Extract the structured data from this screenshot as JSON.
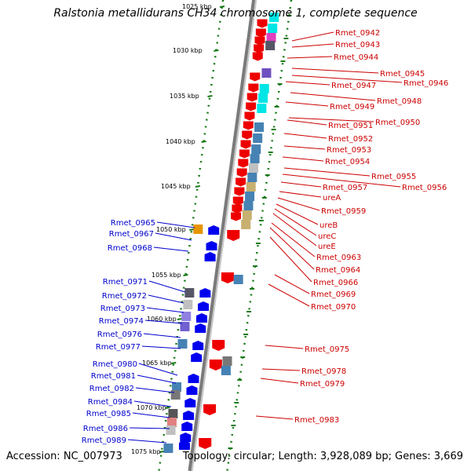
{
  "title": "Ralstonia metallidurans CH34 chromosome 1, complete sequence",
  "footer": {
    "accession": "Accession: NC_007973",
    "topology": "Topology: circular; Length: 3,928,089 bp; Genes: 3,669"
  },
  "colors": {
    "right_labels": "#cc0000",
    "left_labels": "#0000cc",
    "tick_green": "#1a7a1a",
    "backbone": "#999999",
    "forward_gene": "#ee0000",
    "reverse_gene": "#0000ee"
  },
  "scale_labels": [
    "1025 kbp",
    "1030 kbp",
    "1035 kbp",
    "1040 kbp",
    "1045 kbp",
    "1050 kbp",
    "1055 kbp",
    "1060 kbp",
    "1065 kbp",
    "1070 kbp",
    "1075 kbp"
  ],
  "right_genes": [
    "Rmet_0942",
    "Rmet_0943",
    "Rmet_0944",
    "Rmet_0945",
    "Rmet_0946",
    "Rmet_0947",
    "Rmet_0948",
    "Rmet_0949",
    "Rmet_0950",
    "Rmet_0951",
    "Rmet_0952",
    "Rmet_0953",
    "Rmet_0954",
    "Rmet_0955",
    "Rmet_0956",
    "Rmet_0957",
    "ureA",
    "Rmet_0959",
    "ureB",
    "ureC",
    "ureE",
    "Rmet_0963",
    "Rmet_0964",
    "Rmet_0966",
    "Rmet_0969",
    "Rmet_0970",
    "Rmet_0975",
    "Rmet_0978",
    "Rmet_0979",
    "Rmet_0983"
  ],
  "left_genes": [
    "Rmet_0965",
    "Rmet_0967",
    "Rmet_0968",
    "Rmet_0971",
    "Rmet_0972",
    "Rmet_0973",
    "Rmet_0974",
    "Rmet_0976",
    "Rmet_0977",
    "Rmet_0980",
    "Rmet_0981",
    "Rmet_0982",
    "Rmet_0984",
    "Rmet_0985",
    "Rmet_0986",
    "Rmet_0989"
  ]
}
